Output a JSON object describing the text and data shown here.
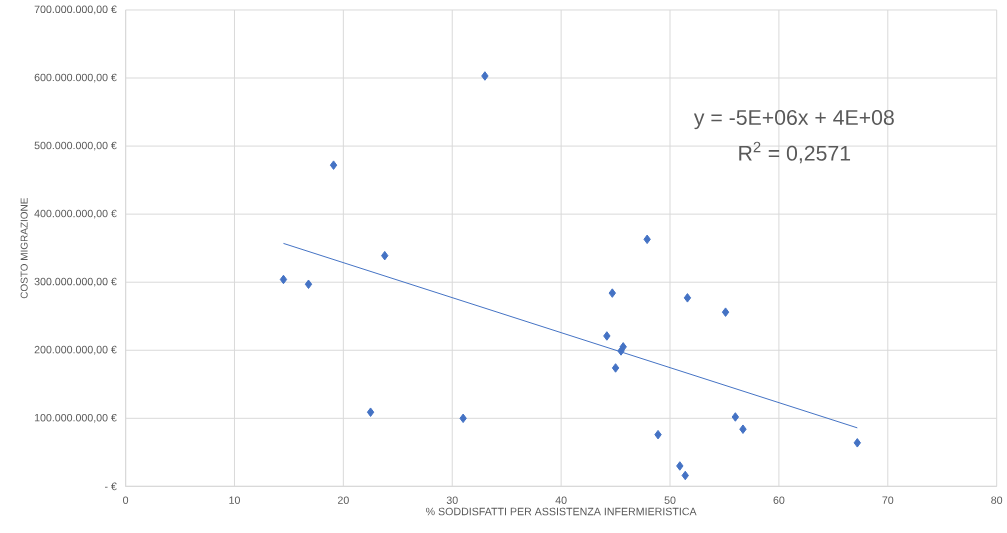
{
  "chart_data": {
    "type": "scatter",
    "xlabel": "% SODDISFATTI PER ASSISTENZA INFERMIERISTICA",
    "ylabel": "COSTO MIGRAZIONE",
    "annotations": [
      "y = -5E+06x + 4E+08",
      "R$^{2}$ = 0,2571"
    ],
    "series": [
      {
        "color": "#4472c4",
        "x": [
          14.5,
          16.8,
          19.1,
          23.8,
          33.0,
          22.5,
          31.0,
          47.9,
          44.7,
          51.6,
          55.1,
          44.2,
          45.7,
          45.5,
          45.0,
          56.0,
          56.7,
          48.9,
          67.2,
          50.9,
          51.4
        ],
        "values": [
          304000000,
          297000000,
          472000000,
          339000000,
          603000000,
          109000000,
          100000000,
          363000000,
          284000000,
          277000000,
          256000000,
          221000000,
          205000000,
          199000000,
          174000000,
          102000000,
          84000000,
          76000000,
          64000000,
          30000000,
          16000000
        ]
      },
      {
        "type": "line",
        "color": "#4472c4",
        "marker": "none",
        "x": [
          14.5,
          67.2
        ],
        "values": [
          357000000,
          86000000
        ]
      }
    ],
    "marker": "diamond",
    "grid": true,
    "xlim": [
      0,
      80
    ],
    "ylim": [
      0,
      700000000
    ],
    "xticks": [
      0,
      10,
      20,
      30,
      40,
      50,
      60,
      70,
      80
    ],
    "yticks": [
      {
        "value": 0,
        "label": "-  €"
      },
      {
        "value": 100000000,
        "label": "100.000.000,00 €"
      },
      {
        "value": 200000000,
        "label": "200.000.000,00 €"
      },
      {
        "value": 300000000,
        "label": "300.000.000,00 €"
      },
      {
        "value": 400000000,
        "label": "400.000.000,00 €"
      },
      {
        "value": 500000000,
        "label": "500.000.000,00 €"
      },
      {
        "value": 600000000,
        "label": "600.000.000,00 €"
      },
      {
        "value": 700000000,
        "label": "700.000.000,00 €"
      }
    ]
  }
}
